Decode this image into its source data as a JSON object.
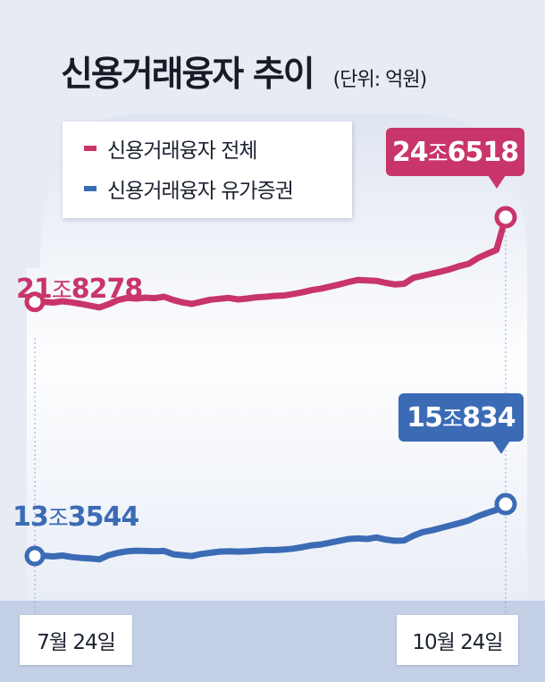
{
  "title": "신용거래융자 추이",
  "unit": "(단위: 억원)",
  "legend": [
    {
      "label": "신용거래융자 전체",
      "color": "#c8356a"
    },
    {
      "label": "신용거래융자 유가증권",
      "color": "#3b6bb5"
    }
  ],
  "labels": {
    "total_start_a": "21",
    "total_start_b": "조",
    "total_start_c": "8278",
    "total_end_a": "24",
    "total_end_b": "조",
    "total_end_c": "6518",
    "sec_start_a": "13",
    "sec_start_b": "조",
    "sec_start_c": "3544",
    "sec_end_a": "15",
    "sec_end_b": "조",
    "sec_end_c": "834",
    "date_start": "7월 24일",
    "date_end": "10월 24일"
  },
  "chart_data": {
    "type": "line",
    "title": "신용거래융자 추이",
    "ylabel": "(단위: 억원)",
    "x_start": "7월 24일",
    "x_end": "10월 24일",
    "series": [
      {
        "name": "신용거래융자 전체",
        "color": "#c8356a",
        "values": [
          218278,
          218300,
          218050,
          218500,
          218100,
          217600,
          217000,
          216400,
          217500,
          218900,
          219600,
          219400,
          219700,
          219500,
          220000,
          218900,
          218100,
          217600,
          218300,
          219000,
          219300,
          219600,
          219100,
          219400,
          219800,
          220000,
          220300,
          220400,
          220900,
          221500,
          222200,
          222700,
          223400,
          224100,
          224900,
          225600,
          225400,
          225300,
          224600,
          224100,
          224300,
          226300,
          227000,
          227700,
          228400,
          229200,
          230200,
          231000,
          232900,
          234300,
          235600,
          246518
        ]
      },
      {
        "name": "신용거래융자 유가증권",
        "color": "#3b6bb5",
        "values": [
          133544,
          133600,
          133400,
          133700,
          133200,
          132900,
          132700,
          132400,
          133800,
          134600,
          135100,
          135300,
          135200,
          135100,
          135200,
          134100,
          133800,
          133500,
          134200,
          134600,
          135000,
          135100,
          135000,
          135100,
          135300,
          135500,
          135500,
          135700,
          136000,
          136500,
          137100,
          137400,
          138000,
          138600,
          139200,
          139400,
          139200,
          139700,
          139000,
          138600,
          138700,
          140300,
          141500,
          142100,
          142900,
          143700,
          144500,
          145400,
          146800,
          147900,
          148900,
          150834
        ]
      }
    ]
  }
}
